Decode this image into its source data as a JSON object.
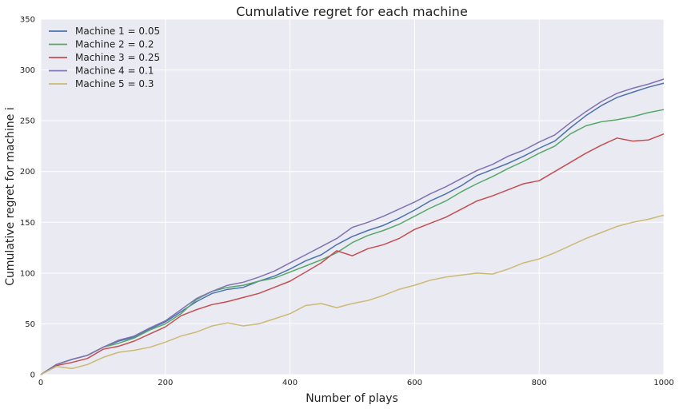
{
  "chart_data": {
    "type": "line",
    "title": "Cumulative regret for each machine",
    "xlabel": "Number of plays",
    "ylabel": "Cumulative regret for machine i",
    "xlim": [
      0,
      1000
    ],
    "ylim": [
      0,
      350
    ],
    "xticks": [
      0,
      200,
      400,
      600,
      800,
      1000
    ],
    "yticks": [
      0,
      50,
      100,
      150,
      200,
      250,
      300,
      350
    ],
    "grid": true,
    "legend_position": "top-left",
    "background": "#EAEAF2",
    "series": [
      {
        "name": "Machine 1 = 0.05",
        "color": "#4C72B0",
        "x": [
          0,
          25,
          50,
          75,
          100,
          125,
          150,
          175,
          200,
          225,
          250,
          275,
          300,
          325,
          350,
          375,
          400,
          425,
          450,
          475,
          500,
          525,
          550,
          575,
          600,
          625,
          650,
          675,
          700,
          725,
          750,
          775,
          800,
          825,
          850,
          875,
          900,
          925,
          950,
          975,
          1000
        ],
        "values": [
          0,
          10,
          15,
          19,
          27,
          33,
          37,
          45,
          52,
          62,
          72,
          80,
          84,
          86,
          92,
          97,
          104,
          112,
          118,
          128,
          136,
          142,
          147,
          154,
          162,
          171,
          178,
          186,
          196,
          202,
          208,
          215,
          223,
          230,
          243,
          255,
          265,
          273,
          278,
          283,
          287
        ]
      },
      {
        "name": "Machine 2 = 0.2",
        "color": "#55A868",
        "x": [
          0,
          25,
          50,
          75,
          100,
          125,
          150,
          175,
          200,
          225,
          250,
          275,
          300,
          325,
          350,
          375,
          400,
          425,
          450,
          475,
          500,
          525,
          550,
          575,
          600,
          625,
          650,
          675,
          700,
          725,
          750,
          775,
          800,
          825,
          850,
          875,
          900,
          925,
          950,
          975,
          1000
        ],
        "values": [
          0,
          10,
          15,
          19,
          27,
          31,
          36,
          44,
          50,
          60,
          74,
          82,
          86,
          88,
          92,
          95,
          101,
          107,
          113,
          120,
          130,
          137,
          142,
          148,
          156,
          164,
          171,
          180,
          188,
          195,
          203,
          210,
          218,
          225,
          237,
          245,
          249,
          251,
          254,
          258,
          261
        ]
      },
      {
        "name": "Machine 3 = 0.25",
        "color": "#C44E52",
        "x": [
          0,
          25,
          50,
          75,
          100,
          125,
          150,
          175,
          200,
          225,
          250,
          275,
          300,
          325,
          350,
          375,
          400,
          425,
          450,
          475,
          500,
          525,
          550,
          575,
          600,
          625,
          650,
          675,
          700,
          725,
          750,
          775,
          800,
          825,
          850,
          875,
          900,
          925,
          950,
          975,
          1000
        ],
        "values": [
          0,
          9,
          12,
          16,
          25,
          28,
          33,
          40,
          47,
          58,
          64,
          69,
          72,
          76,
          80,
          86,
          92,
          101,
          110,
          122,
          117,
          124,
          128,
          134,
          143,
          149,
          155,
          163,
          171,
          176,
          182,
          188,
          191,
          200,
          209,
          218,
          226,
          233,
          230,
          231,
          237
        ]
      },
      {
        "name": "Machine 4 = 0.1",
        "color": "#8172B2",
        "x": [
          0,
          25,
          50,
          75,
          100,
          125,
          150,
          175,
          200,
          225,
          250,
          275,
          300,
          325,
          350,
          375,
          400,
          425,
          450,
          475,
          500,
          525,
          550,
          575,
          600,
          625,
          650,
          675,
          700,
          725,
          750,
          775,
          800,
          825,
          850,
          875,
          900,
          925,
          950,
          975,
          1000
        ],
        "values": [
          0,
          10,
          15,
          19,
          27,
          34,
          38,
          46,
          53,
          64,
          75,
          82,
          88,
          91,
          96,
          102,
          110,
          118,
          126,
          134,
          145,
          150,
          156,
          163,
          170,
          178,
          185,
          193,
          201,
          207,
          215,
          221,
          229,
          236,
          248,
          259,
          269,
          277,
          282,
          286,
          291
        ]
      },
      {
        "name": "Machine 5 = 0.3",
        "color": "#CCB974",
        "x": [
          0,
          25,
          50,
          75,
          100,
          125,
          150,
          175,
          200,
          225,
          250,
          275,
          300,
          325,
          350,
          375,
          400,
          425,
          450,
          475,
          500,
          525,
          550,
          575,
          600,
          625,
          650,
          675,
          700,
          725,
          750,
          775,
          800,
          825,
          850,
          875,
          900,
          925,
          950,
          975,
          1000
        ],
        "values": [
          0,
          8,
          6,
          10,
          17,
          22,
          24,
          27,
          32,
          38,
          42,
          48,
          51,
          48,
          50,
          55,
          60,
          68,
          70,
          66,
          70,
          73,
          78,
          84,
          88,
          93,
          96,
          98,
          100,
          99,
          104,
          110,
          114,
          120,
          127,
          134,
          140,
          146,
          150,
          153,
          157
        ]
      }
    ]
  }
}
